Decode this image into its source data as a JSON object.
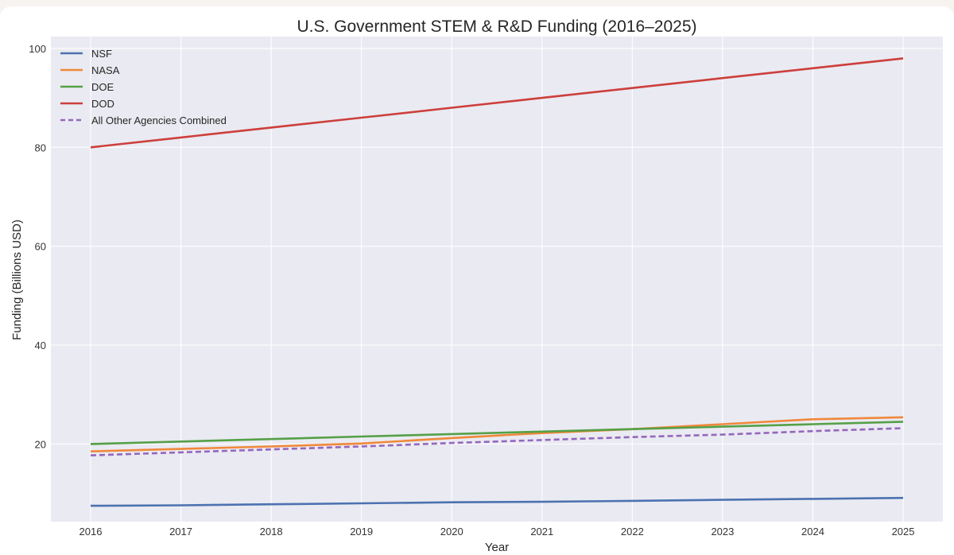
{
  "chart_data": {
    "type": "line",
    "title": "U.S. Government STEM & R&D Funding (2016–2025)",
    "xlabel": "Year",
    "ylabel": "Funding (Billions USD)",
    "categories": [
      "2016",
      "2017",
      "2018",
      "2019",
      "2020",
      "2021",
      "2022",
      "2023",
      "2024",
      "2025"
    ],
    "x": [
      2016,
      2017,
      2018,
      2019,
      2020,
      2021,
      2022,
      2023,
      2024,
      2025
    ],
    "xlim": [
      2015.56,
      2025.44
    ],
    "ylim": [
      4.3,
      102.4
    ],
    "yticks": [
      20,
      40,
      60,
      80,
      100
    ],
    "grid": true,
    "legend_position": "top-left",
    "series": [
      {
        "name": "NSF",
        "color": "#4c72b0",
        "dash": "solid",
        "values": [
          7.5,
          7.6,
          7.8,
          8.0,
          8.2,
          8.3,
          8.5,
          8.7,
          8.9,
          9.1
        ]
      },
      {
        "name": "NASA",
        "color": "#f0883a",
        "dash": "solid",
        "values": [
          18.5,
          19.0,
          19.5,
          20.1,
          21.2,
          22.2,
          23.0,
          24.0,
          25.0,
          25.4
        ]
      },
      {
        "name": "DOE",
        "color": "#55a047",
        "dash": "solid",
        "values": [
          20.0,
          20.5,
          21.0,
          21.5,
          22.0,
          22.5,
          23.0,
          23.5,
          24.0,
          24.5
        ]
      },
      {
        "name": "DOD",
        "color": "#cd3f3b",
        "dash": "solid",
        "values": [
          80.0,
          82.0,
          84.0,
          86.0,
          88.0,
          90.0,
          92.0,
          94.0,
          96.0,
          98.0
        ]
      },
      {
        "name": "All Other Agencies Combined",
        "color": "#9467bd",
        "dash": "dashed",
        "values": [
          17.7,
          18.3,
          18.9,
          19.5,
          20.2,
          20.8,
          21.4,
          21.9,
          22.6,
          23.2
        ]
      }
    ]
  }
}
